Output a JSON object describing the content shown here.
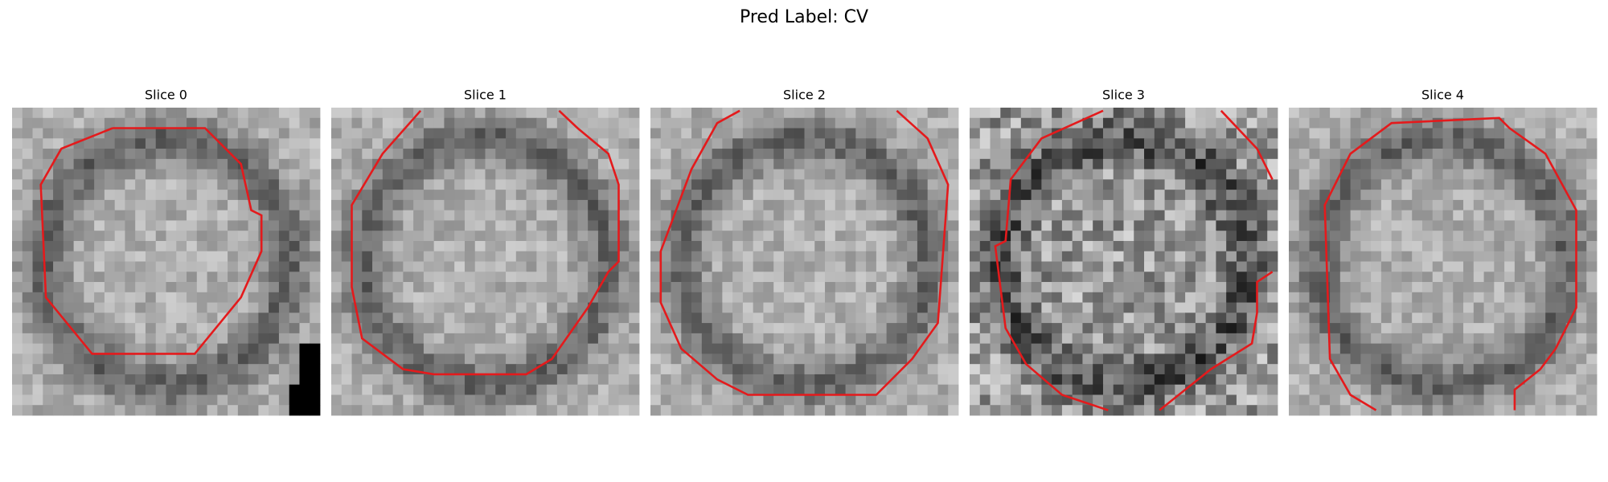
{
  "title": "Pred Label: CV",
  "panels": [
    {
      "title": "Slice 0"
    },
    {
      "title": "Slice 1"
    },
    {
      "title": "Slice 2"
    },
    {
      "title": "Slice 3"
    },
    {
      "title": "Slice 4"
    }
  ]
}
